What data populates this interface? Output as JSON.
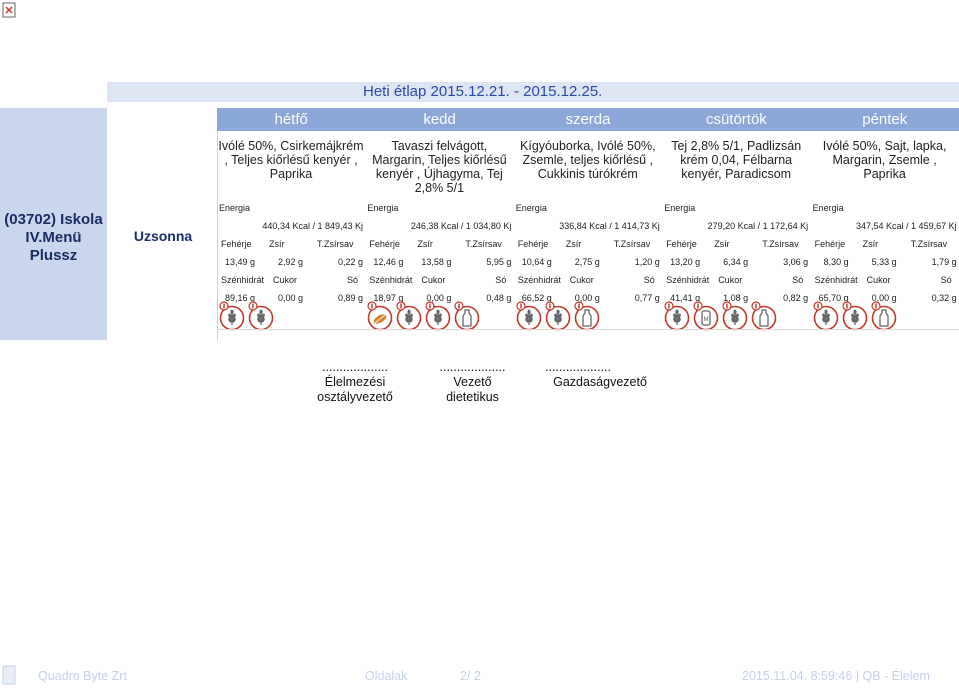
{
  "title": "Heti étlap 2015.12.21. - 2015.12.25.",
  "days": [
    "hétfő",
    "kedd",
    "szerda",
    "csütörtök",
    "péntek"
  ],
  "group_label": "(03702) Iskola IV.Menü Plussz",
  "meal_type": "Uzsonna",
  "labels": {
    "energia": "Energia",
    "feherje": "Fehérje",
    "zsir": "Zsír",
    "tzsirsav": "T.Zsírsav",
    "szenhidrat": "Szénhidrát",
    "cukor": "Cukor",
    "so": "Só"
  },
  "columns": [
    {
      "menu": "Ivólé 50%, Csirkemájkrém , Teljes kiőrlésű kenyér , Paprika",
      "energy": "440,34 Kcal / 1 849,43 Kj",
      "feherje": "13,49 g",
      "zsir": "2,92 g",
      "tzsirsav": "0,22 g",
      "szenhidrat": "89,16 g",
      "cukor": "0,00 g",
      "so": "0,89 g",
      "allergens": [
        "wheat",
        "wheat"
      ]
    },
    {
      "menu": "Tavaszi felvágott, Margarin, Teljes kiőrlésű kenyér , Újhagyma, Tej 2,8% 5/1",
      "energy": "246,38 Kcal / 1 034,80 Kj",
      "feherje": "12,46 g",
      "zsir": "13,58 g",
      "tzsirsav": "5,95 g",
      "szenhidrat": "18,97 g",
      "cukor": "0,00 g",
      "so": "0,48 g",
      "allergens": [
        "peanut",
        "wheat",
        "wheat",
        "milk"
      ]
    },
    {
      "menu": "Kígyóuborka, Ivólé 50%, Zsemle, teljes kiőrlésű , Cukkinis túrókrém",
      "energy": "336,84 Kcal / 1 414,73 Kj",
      "feherje": "10,64 g",
      "zsir": "2,75 g",
      "tzsirsav": "1,20 g",
      "szenhidrat": "66,52 g",
      "cukor": "0,00 g",
      "so": "0,77 g",
      "allergens": [
        "wheat",
        "wheat",
        "milk"
      ]
    },
    {
      "menu": "Tej 2,8% 5/1, Padlizsán krém 0,04, Félbarna kenyér, Paradicsom",
      "energy": "279,20 Kcal / 1 172,64 Kj",
      "feherje": "13,20 g",
      "zsir": "6,34 g",
      "tzsirsav": "3,06 g",
      "szenhidrat": "41,41 g",
      "cukor": "1,08 g",
      "so": "0,82 g",
      "allergens": [
        "wheat",
        "mustard",
        "wheat",
        "milk"
      ]
    },
    {
      "menu": "Ivólé 50%, Sajt, lapka, Margarin, Zsemle , Paprika",
      "energy": "347,54 Kcal / 1 459,67 Kj",
      "feherje": "8,30 g",
      "zsir": "5,33 g",
      "tzsirsav": "1,79 g",
      "szenhidrat": "65,70 g",
      "cukor": "0,00 g",
      "so": "0,32 g",
      "allergens": [
        "wheat",
        "wheat",
        "milk"
      ]
    }
  ],
  "signatures": [
    {
      "dots": "...................",
      "role": "Élelmezési osztályvezető"
    },
    {
      "dots": "...................",
      "role": "Vezető dietetikus"
    },
    {
      "dots": "...................",
      "role": "Gazdaságvezető"
    }
  ],
  "footer": {
    "company": "Quadro Byte Zrt",
    "pages_label": "Oldalak",
    "pages": "2/ 2",
    "timestamp": "2015.11.04. 8:59:46 | QB - Élelem"
  },
  "colors": {
    "title_bg": "#dde4f2",
    "days_bg": "#8ca8d8",
    "left_bg": "#c9d6ee",
    "allergen_red": "#c0392b"
  }
}
